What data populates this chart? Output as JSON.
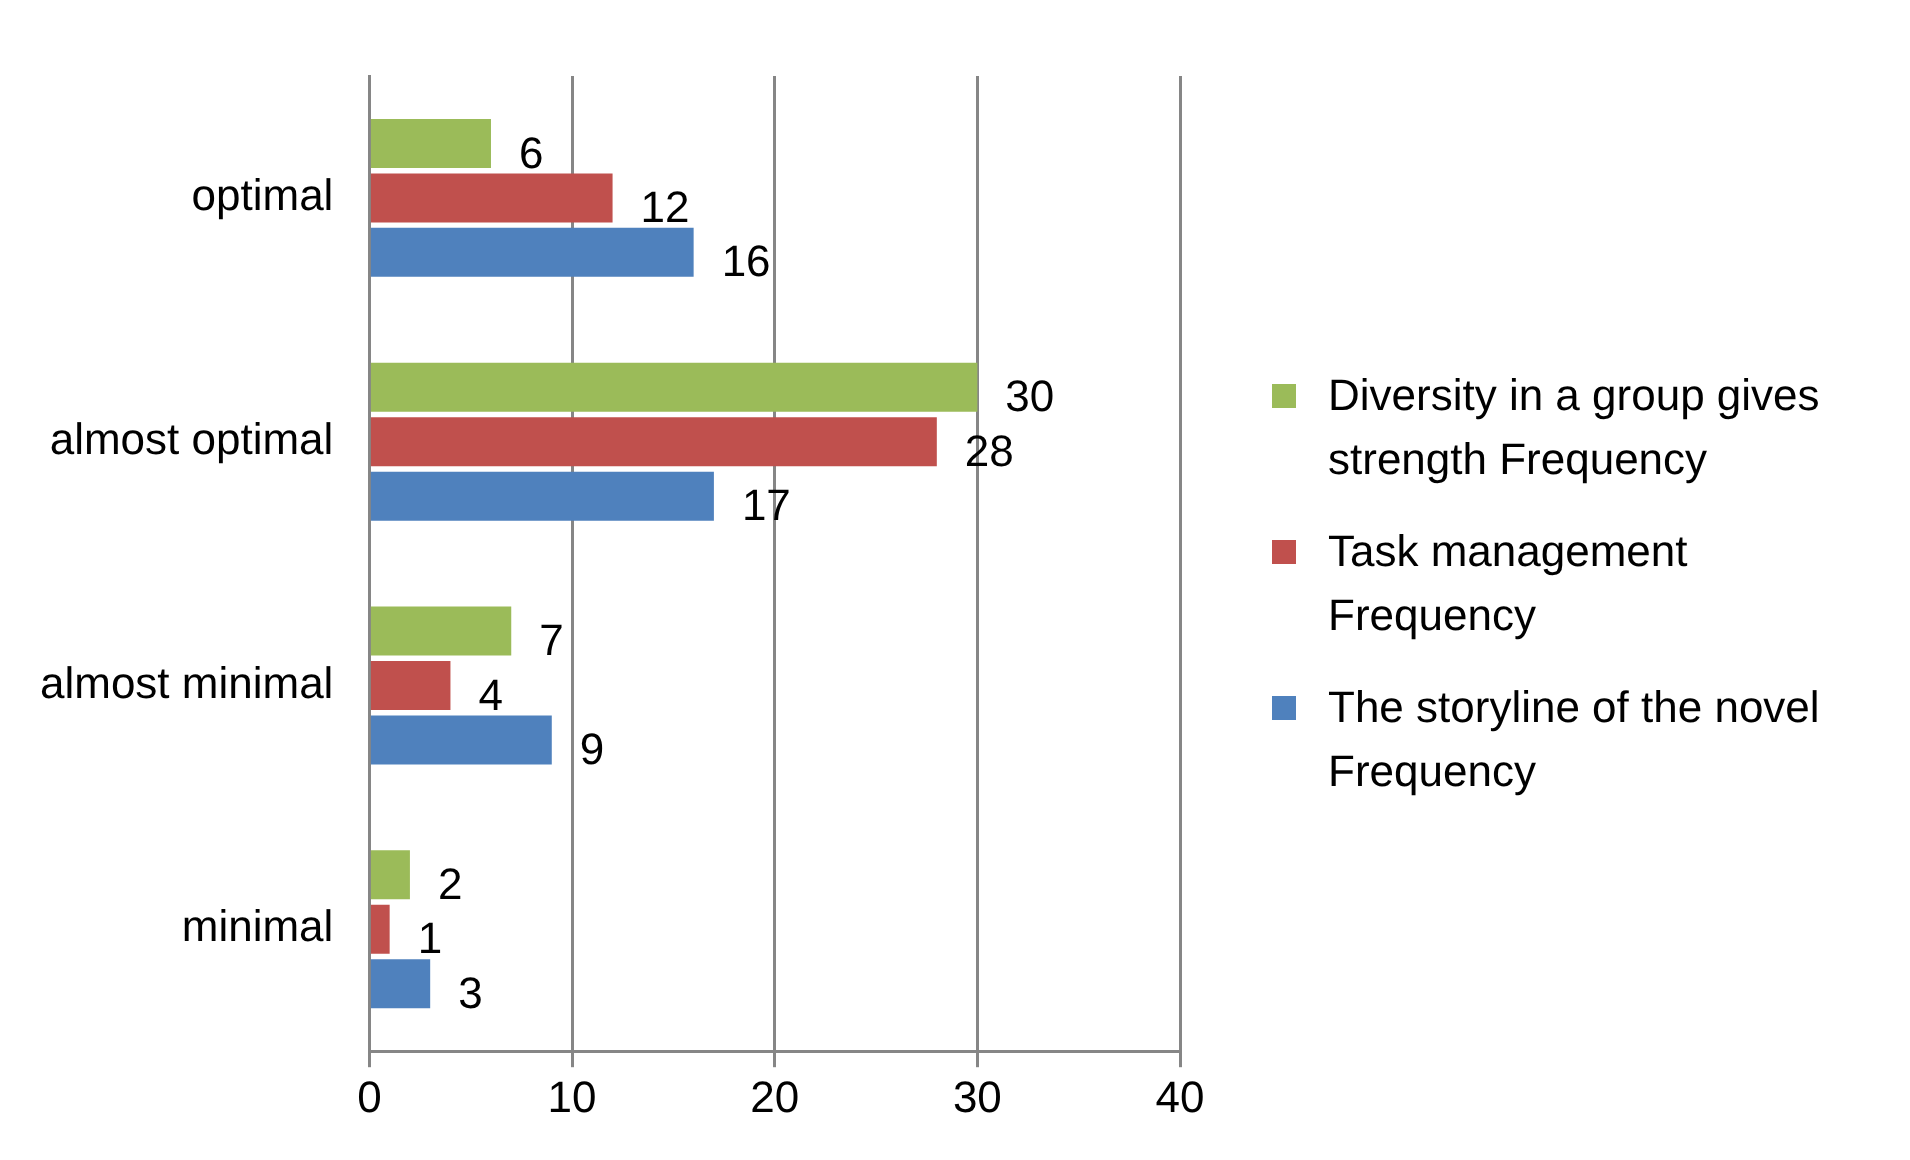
{
  "chart_data": {
    "type": "bar",
    "orientation": "horizontal",
    "categories": [
      "optimal",
      "almost optimal",
      "almost minimal",
      "minimal"
    ],
    "series": [
      {
        "name": "Diversity in a group gives strength Frequency",
        "color": "#9bbb59",
        "values": [
          6,
          30,
          7,
          2
        ]
      },
      {
        "name": "Task management Frequency",
        "color": "#c0504d",
        "values": [
          12,
          28,
          4,
          1
        ]
      },
      {
        "name": "The storyline of the novel Frequency",
        "color": "#4f81bd",
        "values": [
          16,
          17,
          9,
          3
        ]
      }
    ],
    "xlim": [
      0,
      40
    ],
    "xticks": [
      0,
      10,
      20,
      30,
      40
    ],
    "grid": "x",
    "legend": "right",
    "data_labels": true
  }
}
